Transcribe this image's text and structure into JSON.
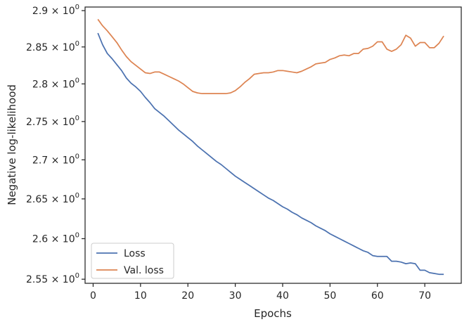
{
  "chart_data": {
    "type": "line",
    "title": "",
    "xlabel": "Epochs",
    "ylabel": "Negative log-likelihood",
    "xlim": [
      -1.7,
      77.7
    ],
    "ylim": [
      2.545,
      2.905
    ],
    "y_scale": "log",
    "grid": false,
    "legend_position": "lower-left",
    "x_ticks": [
      0,
      10,
      20,
      30,
      40,
      50,
      60,
      70
    ],
    "y_ticks": [
      {
        "value": 2.55,
        "mantissa": "2.55"
      },
      {
        "value": 2.6,
        "mantissa": "2.6"
      },
      {
        "value": 2.65,
        "mantissa": "2.65"
      },
      {
        "value": 2.7,
        "mantissa": "2.7"
      },
      {
        "value": 2.75,
        "mantissa": "2.75"
      },
      {
        "value": 2.8,
        "mantissa": "2.8"
      },
      {
        "value": 2.85,
        "mantissa": "2.85"
      },
      {
        "value": 2.9,
        "mantissa": "2.9"
      }
    ],
    "y_tick_suffix": {
      "times": "×",
      "base": "10",
      "exponent": "0"
    },
    "series": [
      {
        "name": "Loss",
        "color": "#4c72b0",
        "x": [
          1,
          2,
          3,
          4,
          5,
          6,
          7,
          8,
          9,
          10,
          11,
          12,
          13,
          14,
          15,
          16,
          17,
          18,
          19,
          20,
          21,
          22,
          23,
          24,
          25,
          26,
          27,
          28,
          29,
          30,
          31,
          32,
          33,
          34,
          35,
          36,
          37,
          38,
          39,
          40,
          41,
          42,
          43,
          44,
          45,
          46,
          47,
          48,
          49,
          50,
          51,
          52,
          53,
          54,
          55,
          56,
          57,
          58,
          59,
          60,
          61,
          62,
          63,
          64,
          65,
          66,
          67,
          68,
          69,
          70,
          71,
          72,
          73,
          74
        ],
        "y": [
          2.869,
          2.853,
          2.841,
          2.834,
          2.826,
          2.818,
          2.808,
          2.801,
          2.796,
          2.79,
          2.782,
          2.775,
          2.767,
          2.762,
          2.757,
          2.751,
          2.745,
          2.739,
          2.734,
          2.729,
          2.724,
          2.718,
          2.713,
          2.708,
          2.703,
          2.698,
          2.694,
          2.689,
          2.684,
          2.679,
          2.675,
          2.671,
          2.667,
          2.663,
          2.659,
          2.655,
          2.651,
          2.648,
          2.644,
          2.64,
          2.637,
          2.633,
          2.63,
          2.626,
          2.623,
          2.62,
          2.616,
          2.613,
          2.61,
          2.606,
          2.603,
          2.6,
          2.597,
          2.594,
          2.591,
          2.588,
          2.585,
          2.583,
          2.579,
          2.578,
          2.578,
          2.578,
          2.572,
          2.572,
          2.571,
          2.569,
          2.57,
          2.569,
          2.561,
          2.561,
          2.558,
          2.557,
          2.556,
          2.556
        ]
      },
      {
        "name": "Val. loss",
        "color": "#dd8452",
        "x": [
          1,
          2,
          3,
          4,
          5,
          6,
          7,
          8,
          9,
          10,
          11,
          12,
          13,
          14,
          15,
          16,
          17,
          18,
          19,
          20,
          21,
          22,
          23,
          24,
          25,
          26,
          27,
          28,
          29,
          30,
          31,
          32,
          33,
          34,
          35,
          36,
          37,
          38,
          39,
          40,
          41,
          42,
          43,
          44,
          45,
          46,
          47,
          48,
          49,
          50,
          51,
          52,
          53,
          54,
          55,
          56,
          57,
          58,
          59,
          60,
          61,
          62,
          63,
          64,
          65,
          66,
          67,
          68,
          69,
          70,
          71,
          72,
          73,
          74
        ],
        "y": [
          2.888,
          2.879,
          2.872,
          2.864,
          2.856,
          2.846,
          2.837,
          2.83,
          2.825,
          2.82,
          2.815,
          2.814,
          2.816,
          2.816,
          2.813,
          2.81,
          2.807,
          2.804,
          2.8,
          2.795,
          2.79,
          2.788,
          2.787,
          2.787,
          2.787,
          2.787,
          2.787,
          2.787,
          2.788,
          2.791,
          2.796,
          2.802,
          2.807,
          2.813,
          2.814,
          2.815,
          2.815,
          2.816,
          2.818,
          2.818,
          2.817,
          2.816,
          2.815,
          2.817,
          2.82,
          2.823,
          2.827,
          2.828,
          2.829,
          2.833,
          2.835,
          2.838,
          2.839,
          2.838,
          2.841,
          2.841,
          2.847,
          2.848,
          2.851,
          2.857,
          2.857,
          2.847,
          2.844,
          2.847,
          2.853,
          2.866,
          2.862,
          2.851,
          2.856,
          2.856,
          2.849,
          2.849,
          2.855,
          2.865
        ]
      }
    ]
  }
}
